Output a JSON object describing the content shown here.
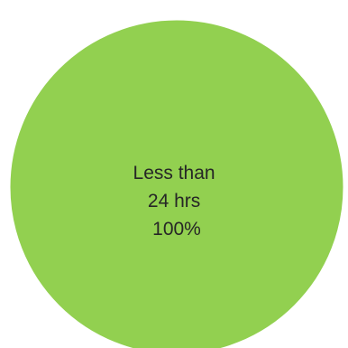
{
  "chart_data": {
    "type": "pie",
    "slices": [
      {
        "label_lines": [
          "Less than",
          "24 hrs",
          "100%"
        ],
        "value": 100,
        "percent": "100%",
        "color": "#92D050"
      }
    ],
    "legend": "none"
  }
}
